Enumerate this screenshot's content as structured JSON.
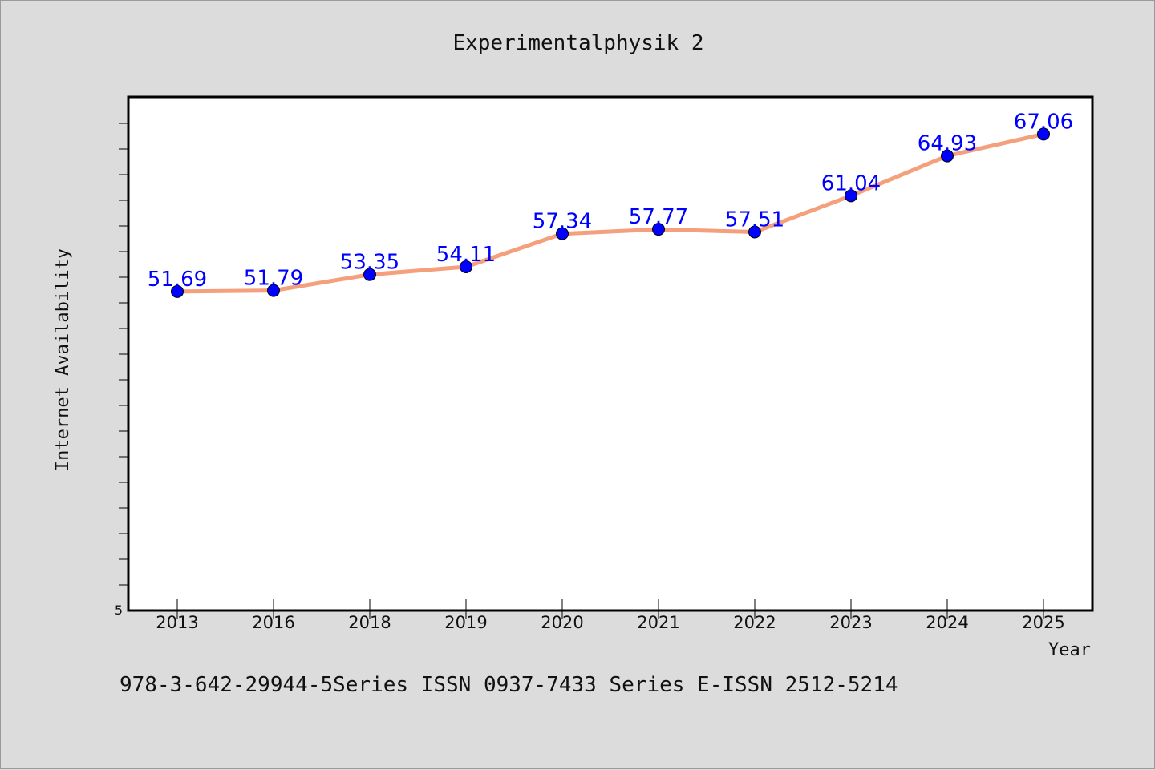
{
  "chart_data": {
    "type": "line",
    "title": "Experimentalphysik 2",
    "xlabel": "Year",
    "ylabel": "Internet Availability",
    "footer": "978-3-642-29944-5Series ISSN 0937-7433 Series E-ISSN 2512-5214",
    "categories": [
      "2013",
      "2016",
      "2018",
      "2019",
      "2020",
      "2021",
      "2022",
      "2023",
      "2024",
      "2025"
    ],
    "series": [
      {
        "values": [
          51.69,
          51.79,
          53.35,
          54.11,
          57.34,
          57.77,
          57.51,
          61.04,
          64.93,
          67.06
        ],
        "data_labels": [
          "51.69",
          "51.79",
          "53.35",
          "54.11",
          "57.34",
          "57.77",
          "57.51",
          "61.04",
          "64.93",
          "67.06"
        ]
      }
    ],
    "y_tick_labels": [
      "5"
    ],
    "ylim": [
      50,
      70
    ],
    "grid": false,
    "legend": "none",
    "colors": {
      "line": "#f4a07c",
      "marker": "#0000ff",
      "data_label": "#0000ff",
      "plot_background": "#ffffff",
      "page_background": "#dcdcdc"
    }
  }
}
